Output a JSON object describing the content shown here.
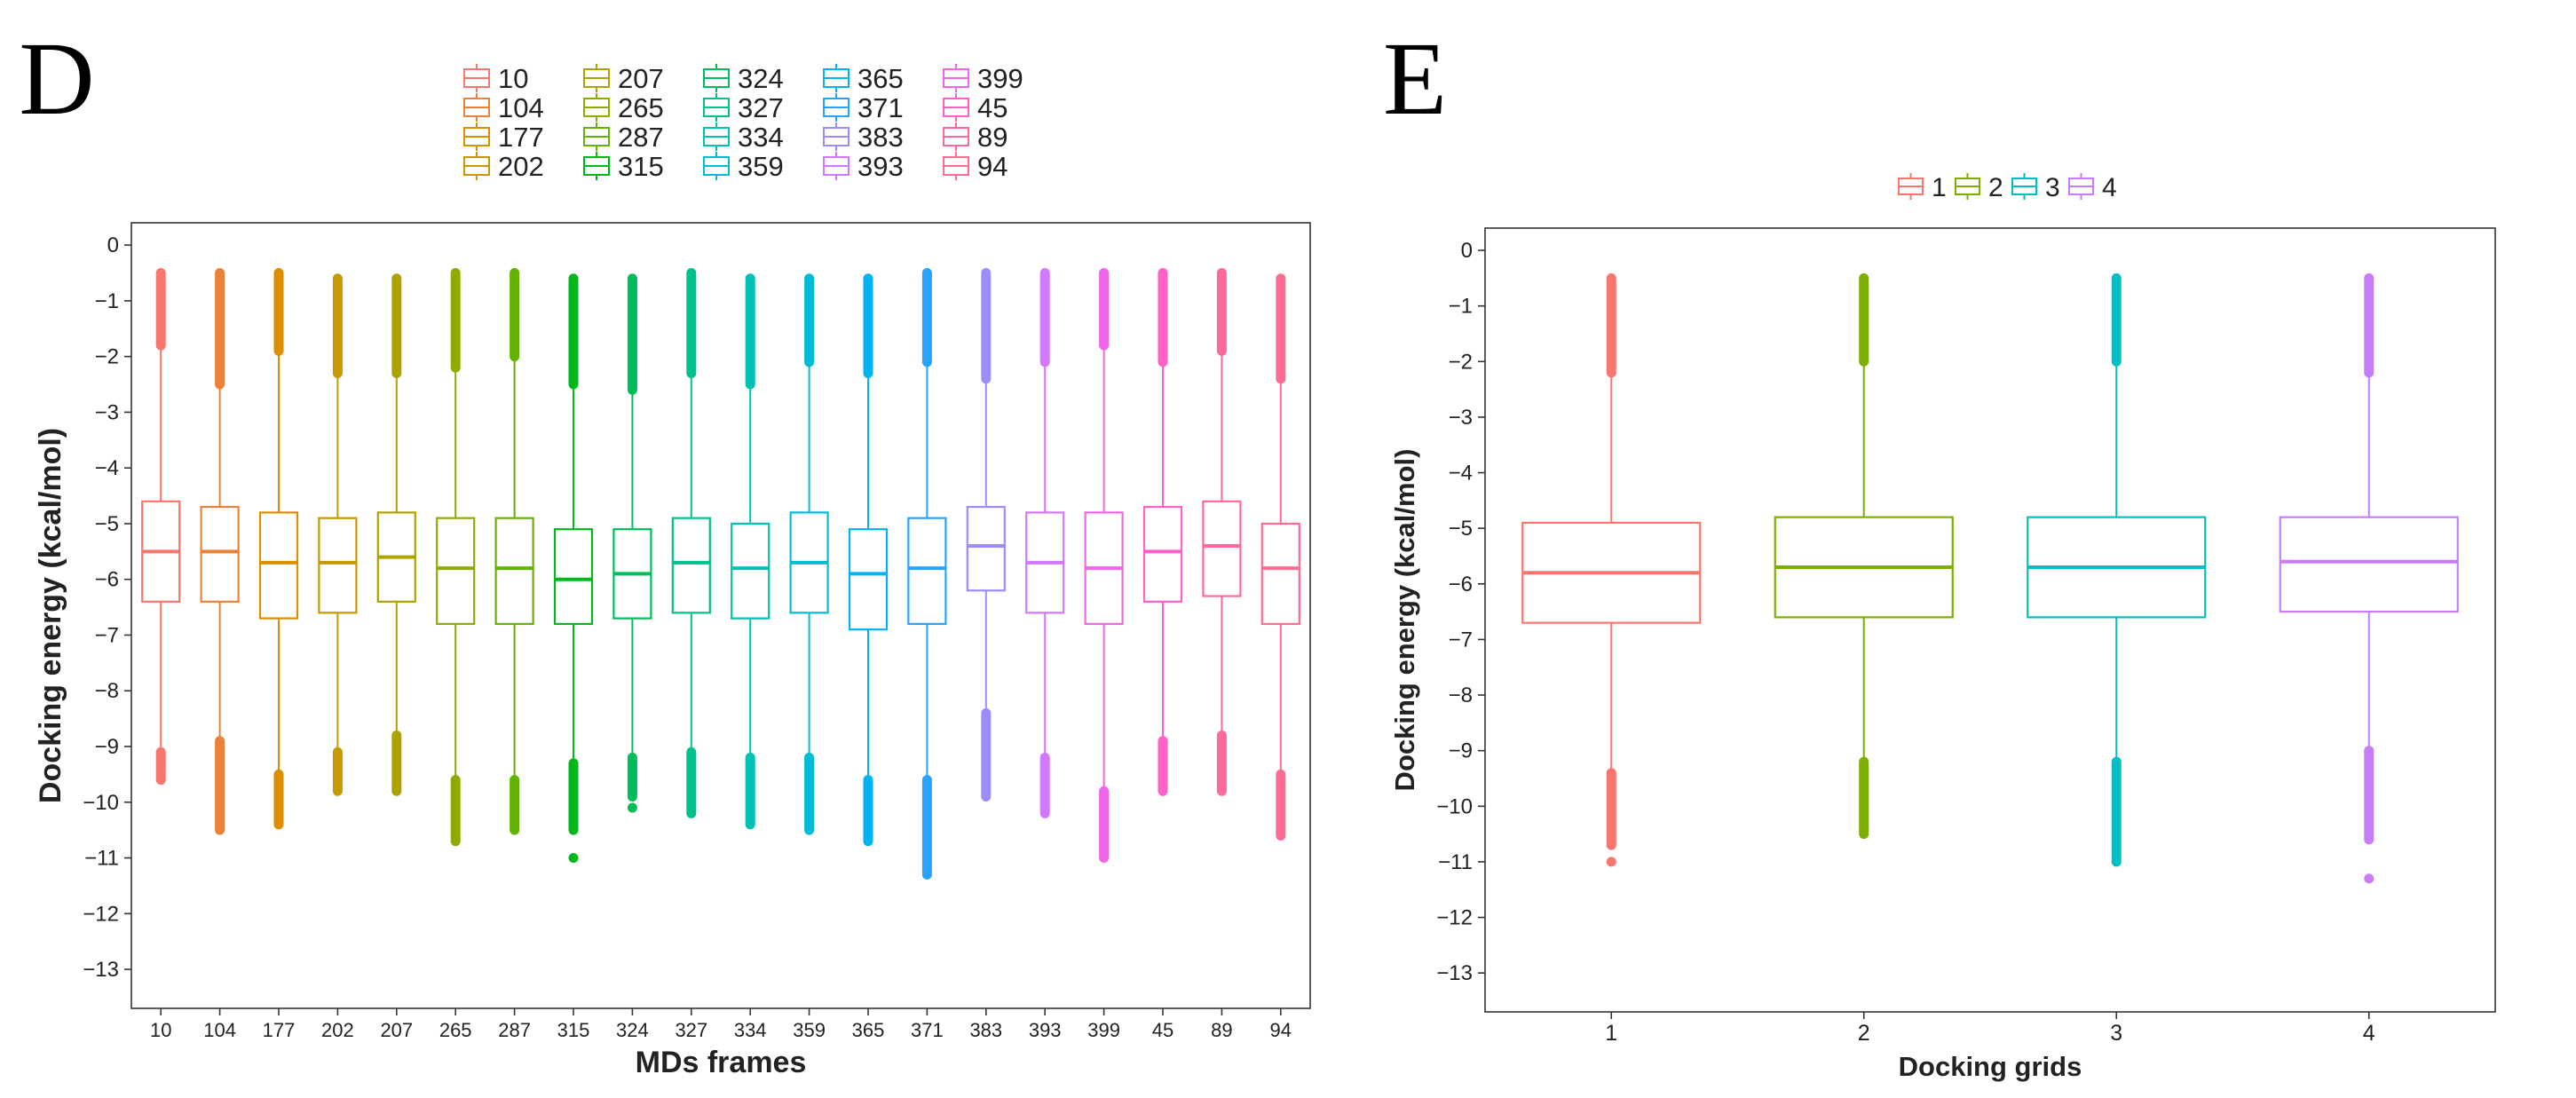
{
  "chart_data": [
    {
      "panel": "D",
      "type": "box",
      "xlabel": "MDs frames",
      "ylabel": "Docking energy (kcal/mol)",
      "ylim": [
        -13.7,
        0.4
      ],
      "yticks": [
        0,
        -1,
        -2,
        -3,
        -4,
        -5,
        -6,
        -7,
        -8,
        -9,
        -10,
        -11,
        -12,
        -13
      ],
      "legend_position": "top",
      "legend_columns": [
        [
          "10",
          "104",
          "177",
          "202"
        ],
        [
          "207",
          "265",
          "287",
          "315"
        ],
        [
          "324",
          "327",
          "334",
          "359"
        ],
        [
          "365",
          "371",
          "383",
          "393"
        ],
        [
          "399",
          "45",
          "89",
          "94"
        ]
      ],
      "categories": [
        "10",
        "104",
        "177",
        "202",
        "207",
        "265",
        "287",
        "315",
        "324",
        "327",
        "334",
        "359",
        "365",
        "371",
        "383",
        "393",
        "399",
        "45",
        "89",
        "94"
      ],
      "colors": [
        "#F8766D",
        "#EC8239",
        "#DB8E00",
        "#C79800",
        "#AEA200",
        "#8FAA00",
        "#64B200",
        "#00B81B",
        "#00BD5C",
        "#00C08D",
        "#00C1B2",
        "#00BCD6",
        "#00B3F2",
        "#29A3FF",
        "#9C8DFF",
        "#D277FF",
        "#F166E8",
        "#FF61C7",
        "#FF689E",
        "#FF6C91"
      ],
      "boxes": [
        {
          "q1": -6.4,
          "median": -5.5,
          "q3": -4.6,
          "wlo": -9.1,
          "whi": -0.5,
          "out_hi": [
            -0.5,
            -1.8
          ],
          "out_lo": [
            -9.1,
            -9.6
          ]
        },
        {
          "q1": -6.4,
          "median": -5.5,
          "q3": -4.7,
          "wlo": -8.9,
          "whi": -0.5,
          "out_hi": [
            -0.5,
            -2.5
          ],
          "out_lo": [
            -8.9,
            -10.5
          ]
        },
        {
          "q1": -6.7,
          "median": -5.7,
          "q3": -4.8,
          "wlo": -9.5,
          "whi": -0.5,
          "out_hi": [
            -0.5,
            -1.9
          ],
          "out_lo": [
            -9.5,
            -10.4
          ]
        },
        {
          "q1": -6.6,
          "median": -5.7,
          "q3": -4.9,
          "wlo": -9.1,
          "whi": -0.6,
          "out_hi": [
            -0.6,
            -2.3
          ],
          "out_lo": [
            -9.1,
            -9.8
          ]
        },
        {
          "q1": -6.4,
          "median": -5.6,
          "q3": -4.8,
          "wlo": -8.8,
          "whi": -0.6,
          "out_hi": [
            -0.6,
            -2.3
          ],
          "out_lo": [
            -8.8,
            -9.8
          ]
        },
        {
          "q1": -6.8,
          "median": -5.8,
          "q3": -4.9,
          "wlo": -9.6,
          "whi": -0.5,
          "out_hi": [
            -0.5,
            -2.2
          ],
          "out_lo": [
            -9.6,
            -10.7
          ]
        },
        {
          "q1": -6.8,
          "median": -5.8,
          "q3": -4.9,
          "wlo": -9.6,
          "whi": -0.5,
          "out_hi": [
            -0.5,
            -2.0
          ],
          "out_lo": [
            -9.6,
            -10.5
          ]
        },
        {
          "q1": -6.8,
          "median": -6.0,
          "q3": -5.1,
          "wlo": -9.3,
          "whi": -0.6,
          "out_hi": [
            -0.6,
            -2.5
          ],
          "out_lo": [
            -9.3,
            -10.5,
            -11.0
          ]
        },
        {
          "q1": -6.7,
          "median": -5.9,
          "q3": -5.1,
          "wlo": -9.2,
          "whi": -0.6,
          "out_hi": [
            -0.6,
            -2.6
          ],
          "out_lo": [
            -9.2,
            -9.9,
            -10.1
          ]
        },
        {
          "q1": -6.6,
          "median": -5.7,
          "q3": -4.9,
          "wlo": -9.1,
          "whi": -0.5,
          "out_hi": [
            -0.5,
            -2.3
          ],
          "out_lo": [
            -9.1,
            -10.2
          ]
        },
        {
          "q1": -6.7,
          "median": -5.8,
          "q3": -5.0,
          "wlo": -9.2,
          "whi": -0.6,
          "out_hi": [
            -0.6,
            -2.5
          ],
          "out_lo": [
            -9.2,
            -10.4
          ]
        },
        {
          "q1": -6.6,
          "median": -5.7,
          "q3": -4.8,
          "wlo": -9.2,
          "whi": -0.6,
          "out_hi": [
            -0.6,
            -2.1
          ],
          "out_lo": [
            -9.2,
            -10.5
          ]
        },
        {
          "q1": -6.9,
          "median": -5.9,
          "q3": -5.1,
          "wlo": -9.6,
          "whi": -0.6,
          "out_hi": [
            -0.6,
            -2.3
          ],
          "out_lo": [
            -9.6,
            -10.7
          ]
        },
        {
          "q1": -6.8,
          "median": -5.8,
          "q3": -4.9,
          "wlo": -9.6,
          "whi": -0.5,
          "out_hi": [
            -0.5,
            -2.1
          ],
          "out_lo": [
            -9.6,
            -11.3
          ]
        },
        {
          "q1": -6.2,
          "median": -5.4,
          "q3": -4.7,
          "wlo": -8.4,
          "whi": -0.5,
          "out_hi": [
            -0.5,
            -2.4
          ],
          "out_lo": [
            -8.4,
            -9.9
          ]
        },
        {
          "q1": -6.6,
          "median": -5.7,
          "q3": -4.8,
          "wlo": -9.2,
          "whi": -0.5,
          "out_hi": [
            -0.5,
            -2.1
          ],
          "out_lo": [
            -9.2,
            -10.2
          ]
        },
        {
          "q1": -6.8,
          "median": -5.8,
          "q3": -4.8,
          "wlo": -9.8,
          "whi": -0.5,
          "out_hi": [
            -0.5,
            -1.8
          ],
          "out_lo": [
            -9.8,
            -11.0
          ]
        },
        {
          "q1": -6.4,
          "median": -5.5,
          "q3": -4.7,
          "wlo": -8.9,
          "whi": -0.5,
          "out_hi": [
            -0.5,
            -2.1
          ],
          "out_lo": [
            -8.9,
            -9.8
          ]
        },
        {
          "q1": -6.3,
          "median": -5.4,
          "q3": -4.6,
          "wlo": -8.8,
          "whi": -0.5,
          "out_hi": [
            -0.5,
            -1.9
          ],
          "out_lo": [
            -8.8,
            -9.8
          ]
        },
        {
          "q1": -6.8,
          "median": -5.8,
          "q3": -5.0,
          "wlo": -9.5,
          "whi": -0.6,
          "out_hi": [
            -0.6,
            -2.4
          ],
          "out_lo": [
            -9.5,
            -10.6
          ]
        }
      ]
    },
    {
      "panel": "E",
      "type": "box",
      "xlabel": "Docking grids",
      "ylabel": "Docking energy (kcal/mol)",
      "ylim": [
        -13.7,
        0.4
      ],
      "yticks": [
        0,
        -1,
        -2,
        -3,
        -4,
        -5,
        -6,
        -7,
        -8,
        -9,
        -10,
        -11,
        -12,
        -13
      ],
      "legend_position": "top",
      "legend_columns": [
        [
          "1"
        ],
        [
          "2"
        ],
        [
          "3"
        ],
        [
          "4"
        ]
      ],
      "categories": [
        "1",
        "2",
        "3",
        "4"
      ],
      "colors": [
        "#F8766D",
        "#7CAE00",
        "#00BFC4",
        "#C77CFF"
      ],
      "boxes": [
        {
          "q1": -6.7,
          "median": -5.8,
          "q3": -4.9,
          "wlo": -9.4,
          "whi": -0.5,
          "out_hi": [
            -0.5,
            -2.2
          ],
          "out_lo": [
            -9.4,
            -10.7,
            -11.0
          ]
        },
        {
          "q1": -6.6,
          "median": -5.7,
          "q3": -4.8,
          "wlo": -9.2,
          "whi": -0.5,
          "out_hi": [
            -0.5,
            -2.0
          ],
          "out_lo": [
            -9.2,
            -10.5
          ]
        },
        {
          "q1": -6.6,
          "median": -5.7,
          "q3": -4.8,
          "wlo": -9.2,
          "whi": -0.5,
          "out_hi": [
            -0.5,
            -2.0
          ],
          "out_lo": [
            -9.2,
            -11.0
          ]
        },
        {
          "q1": -6.5,
          "median": -5.6,
          "q3": -4.8,
          "wlo": -9.0,
          "whi": -0.5,
          "out_hi": [
            -0.5,
            -2.2
          ],
          "out_lo": [
            -9.0,
            -10.6,
            -11.3
          ]
        }
      ]
    }
  ]
}
